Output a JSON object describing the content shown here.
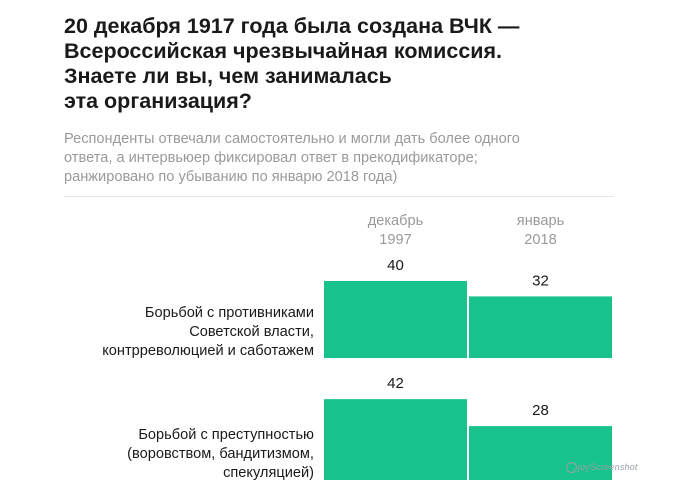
{
  "title": "20 декабря 1917 года была создана ВЧК —\nВсероссийская чрезвычайная комиссия.\nЗнаете ли вы, чем занималась\nэта организация?",
  "subtitle": "Респонденты отвечали самостоятельно и могли дать более одного\nответа, а интервьюер фиксировал ответ в прекодификаторе;\nранжировано по убыванию по январю 2018 года)",
  "watermark": "joyScreenshot",
  "colors": {
    "bar": "#17c38a",
    "text": "#1a1a1a",
    "muted": "#9a9a9a"
  },
  "chart_data": {
    "type": "bar",
    "orientation": "vertical-grouped",
    "title": "20 декабря 1917 года была создана ВЧК — Всероссийская чрезвычайная комиссия. Знаете ли вы, чем занималась эта организация?",
    "series": [
      {
        "name": "декабрь 1997",
        "name_lines": [
          "декабрь",
          "1997"
        ],
        "values": [
          40,
          42
        ]
      },
      {
        "name": "январь 2018",
        "name_lines": [
          "январь",
          "2018"
        ],
        "values": [
          32,
          28
        ]
      }
    ],
    "categories": [
      "Борьбой с противниками Советской власти, контрреволюцией и саботажем",
      "Борьбой с преступностью (воровством, бандитизмом, спекуляцией)"
    ],
    "category_lines": [
      [
        "Борьбой с противниками",
        "Советской власти,",
        "контрреволюцией и саботажем"
      ],
      [
        "Борьбой с преступностью",
        "(воровством, бандитизмом,",
        "спекуляцией)"
      ]
    ],
    "ylim": [
      0,
      100
    ],
    "grid": false,
    "legend": "top",
    "xlabel": "",
    "ylabel": ""
  }
}
